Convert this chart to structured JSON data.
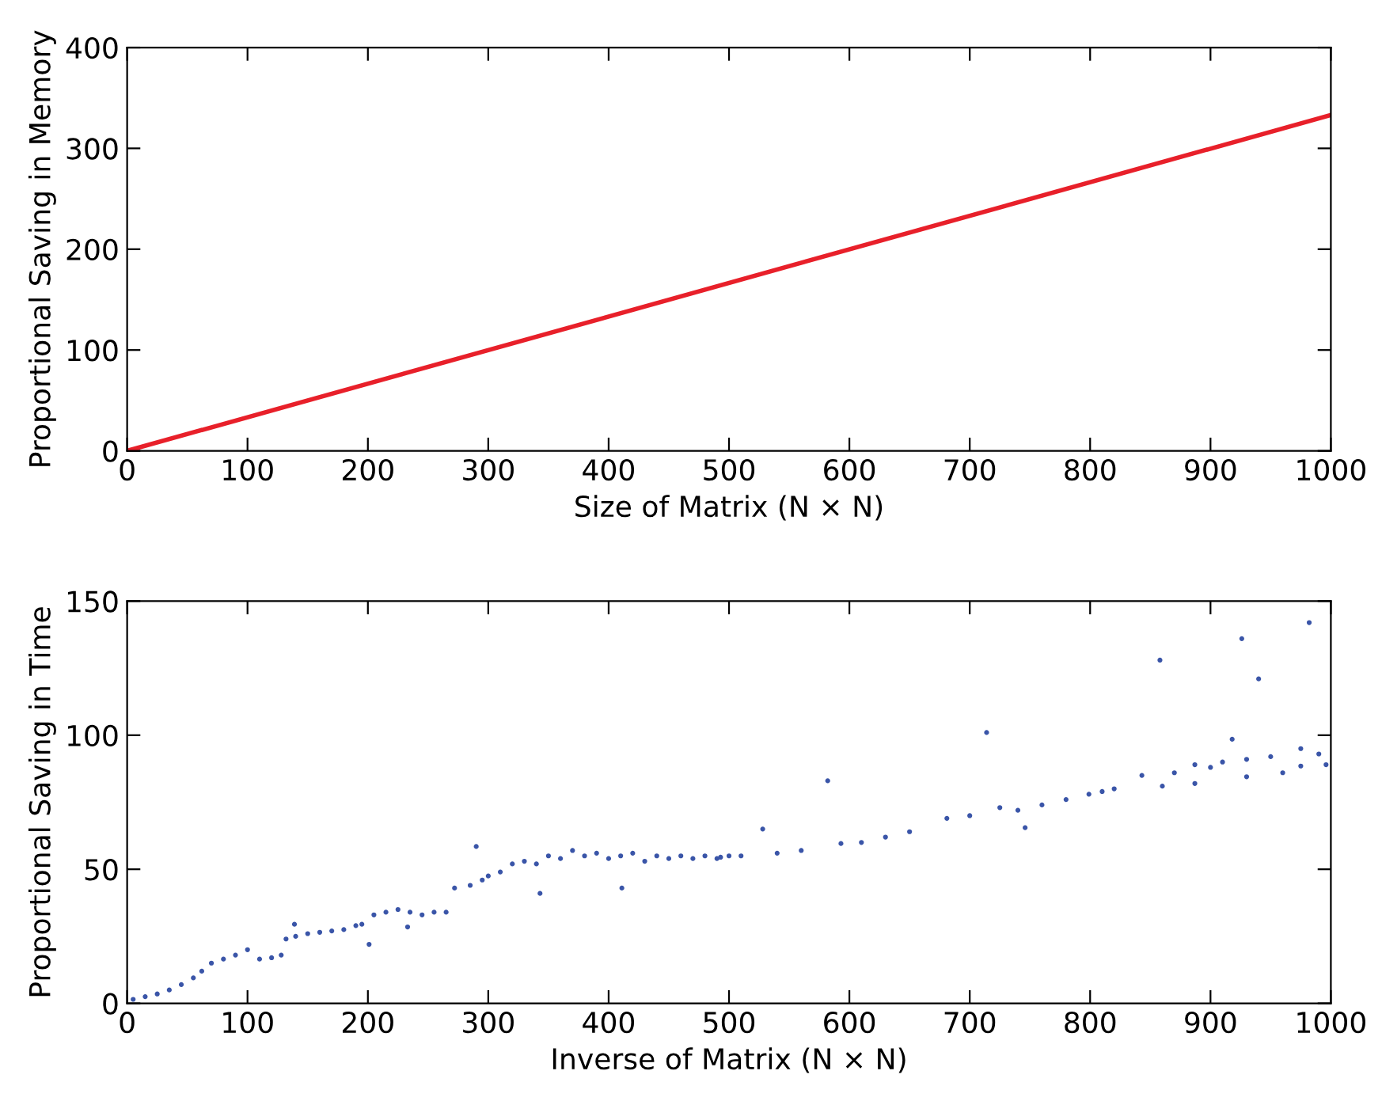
{
  "chart_data": [
    {
      "type": "line",
      "xlabel": "Size of Matrix (N × N)",
      "ylabel": "Proportional Saving in Memory",
      "xlim": [
        0,
        1000
      ],
      "ylim": [
        0,
        400
      ],
      "xticks": [
        0,
        100,
        200,
        300,
        400,
        500,
        600,
        700,
        800,
        900,
        1000
      ],
      "yticks": [
        0,
        100,
        200,
        300,
        400
      ],
      "series": [
        {
          "color": "#e8202a",
          "x": [
            0,
            1000
          ],
          "values": [
            0,
            333
          ]
        }
      ]
    },
    {
      "type": "scatter",
      "xlabel": "Inverse of Matrix (N × N)",
      "ylabel": "Proportional Saving in Time",
      "xlim": [
        0,
        1000
      ],
      "ylim": [
        0,
        150
      ],
      "xticks": [
        0,
        100,
        200,
        300,
        400,
        500,
        600,
        700,
        800,
        900,
        1000
      ],
      "yticks": [
        0,
        50,
        100,
        150
      ],
      "series": [
        {
          "color": "#3a55a8",
          "x": [
            5,
            15,
            25,
            35,
            45,
            55,
            62,
            70,
            80,
            90,
            100,
            110,
            120,
            128,
            132,
            139,
            140,
            150,
            160,
            170,
            180,
            190,
            195,
            201,
            205,
            215,
            225,
            233,
            235,
            245,
            255,
            265,
            272,
            285,
            290,
            295,
            300,
            310,
            320,
            330,
            340,
            343,
            350,
            360,
            370,
            380,
            390,
            400,
            410,
            411,
            420,
            430,
            440,
            450,
            460,
            470,
            480,
            490,
            493,
            500,
            510,
            528,
            540,
            560,
            582,
            593,
            610,
            630,
            650,
            681,
            700,
            714,
            725,
            740,
            746,
            760,
            780,
            799,
            810,
            820,
            843,
            860,
            858,
            870,
            887,
            887,
            900,
            910,
            918,
            926,
            930,
            930,
            940,
            950,
            960,
            975,
            975,
            982,
            990,
            996
          ],
          "values": [
            1.5,
            2.5,
            3.5,
            5,
            7,
            9.5,
            12,
            15,
            16.5,
            18,
            20,
            16.5,
            17,
            18,
            24,
            29.5,
            25,
            26,
            26.5,
            27,
            27.5,
            29,
            29.5,
            22,
            33,
            34,
            35,
            28.5,
            34,
            33,
            34,
            34,
            43,
            44,
            58.5,
            46,
            47.5,
            49,
            52,
            53,
            52,
            41,
            55,
            54,
            57,
            55,
            56,
            54,
            55,
            43,
            56,
            53,
            55,
            54,
            55,
            54,
            55,
            54,
            54.5,
            55,
            55,
            65,
            56,
            57,
            83,
            59.6,
            60,
            62,
            64,
            69,
            70,
            101,
            73,
            72,
            65.5,
            74,
            76,
            78,
            79,
            80,
            85,
            81,
            128,
            86,
            89,
            82,
            88,
            90,
            98.5,
            136,
            91,
            84.5,
            121,
            92,
            86,
            95,
            88.5,
            142,
            93,
            89
          ]
        }
      ]
    }
  ]
}
